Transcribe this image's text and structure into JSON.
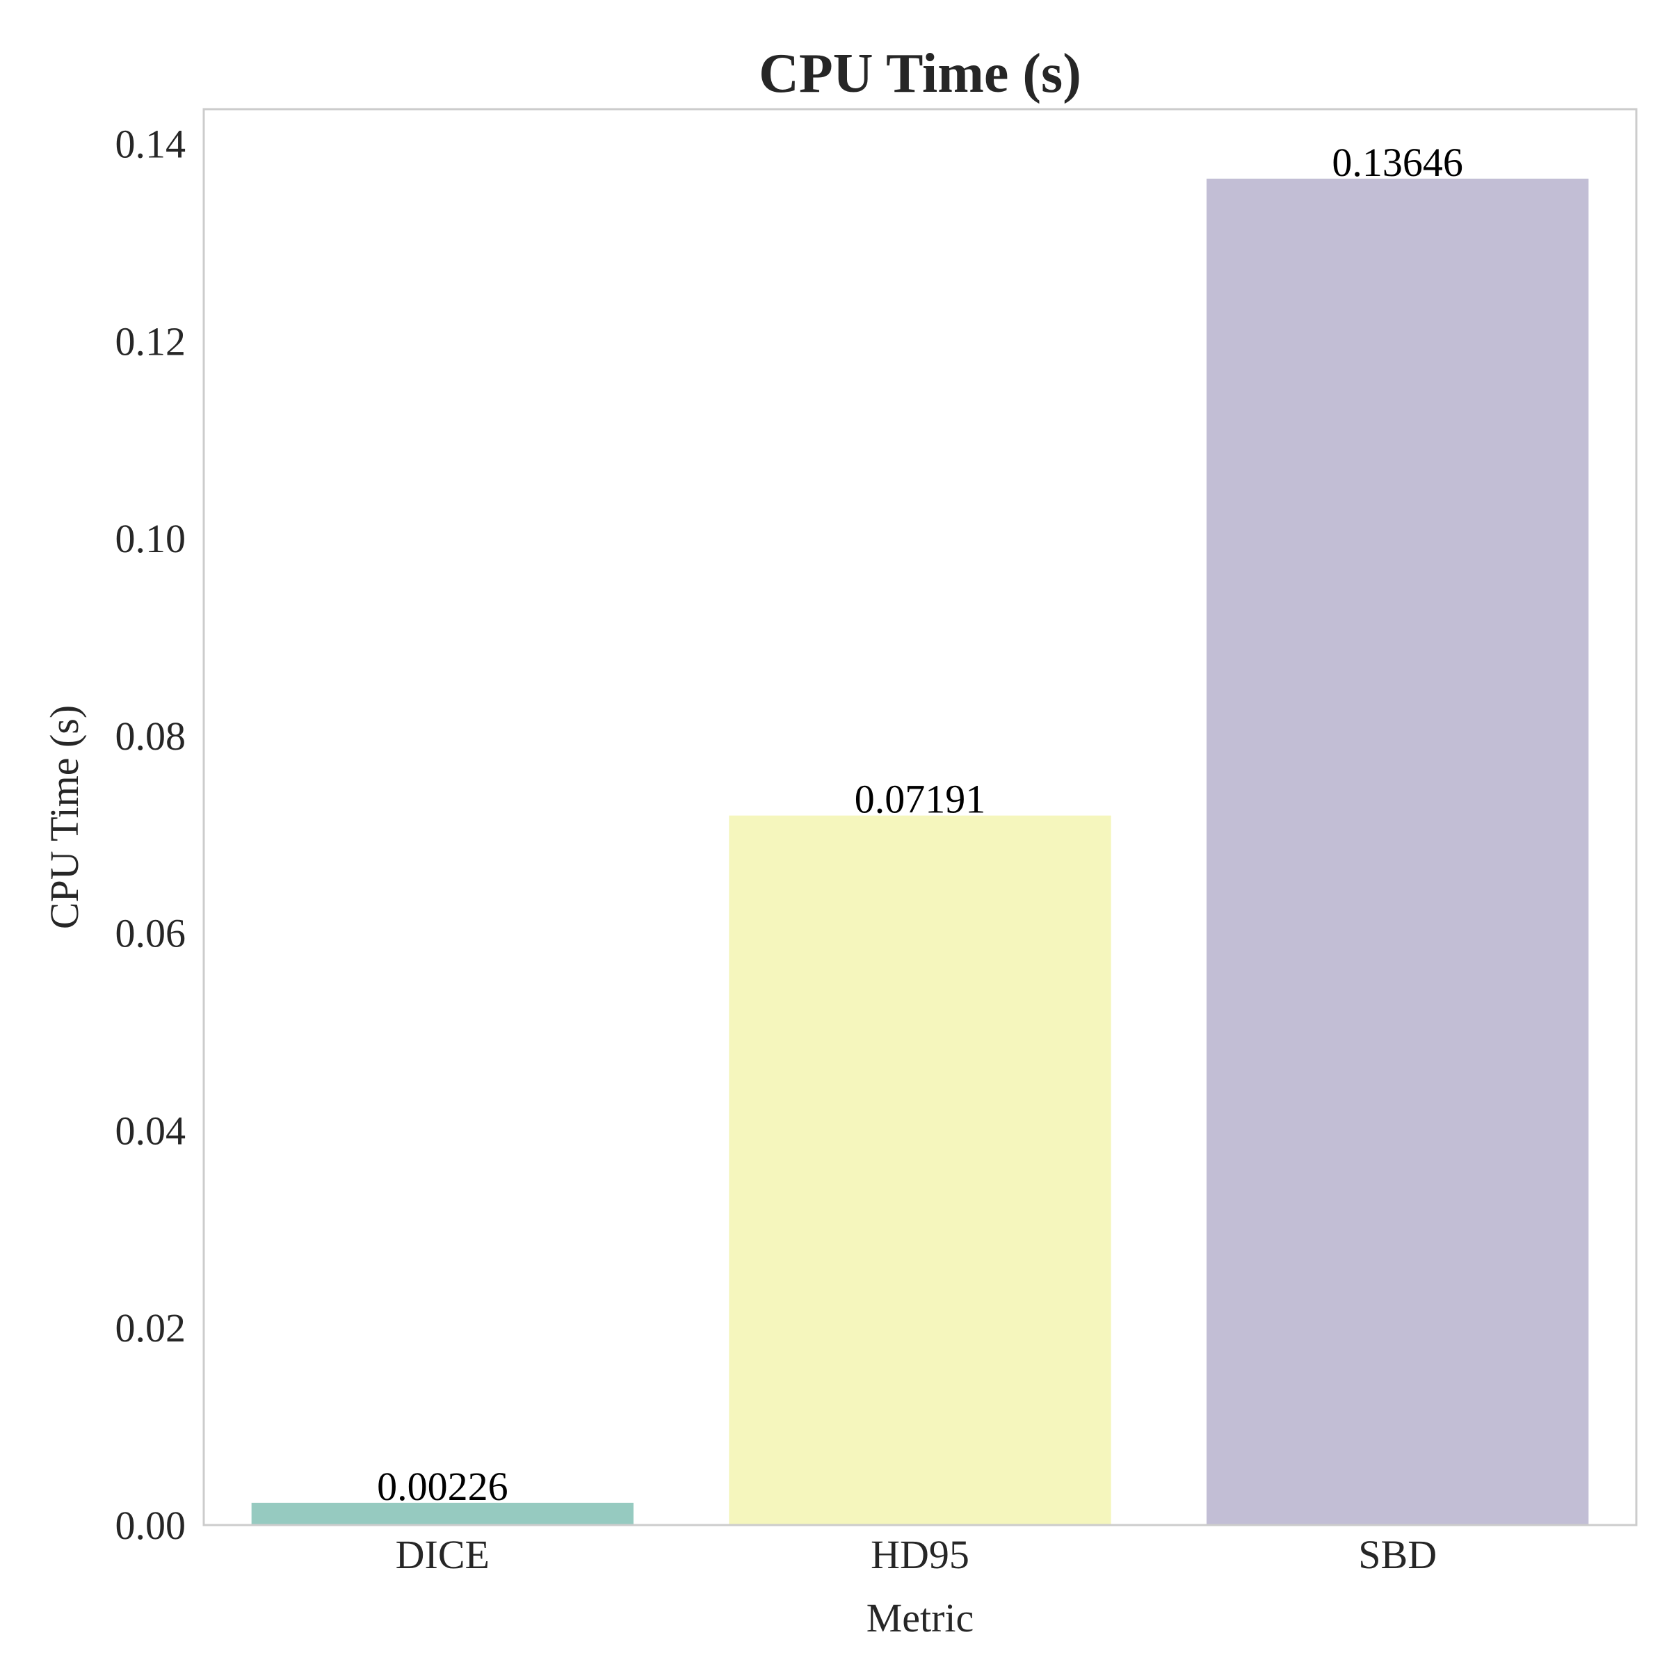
{
  "chart_data": {
    "type": "bar",
    "title": "CPU Time (s)",
    "xlabel": "Metric",
    "ylabel": "CPU Time (s)",
    "categories": [
      "DICE",
      "HD95",
      "SBD"
    ],
    "values": [
      0.00226,
      0.07191,
      0.13646
    ],
    "value_labels": [
      "0.00226",
      "0.07191",
      "0.13646"
    ],
    "colors": [
      "#96cac0",
      "#f5f6bd",
      "#c2bed5"
    ],
    "ylim": [
      0,
      0.1435
    ],
    "yticks": [
      0.0,
      0.02,
      0.04,
      0.06,
      0.08,
      0.1,
      0.12,
      0.14
    ],
    "ytick_labels": [
      "0.00",
      "0.02",
      "0.04",
      "0.06",
      "0.08",
      "0.10",
      "0.12",
      "0.14"
    ],
    "grid": false,
    "legend": false
  }
}
